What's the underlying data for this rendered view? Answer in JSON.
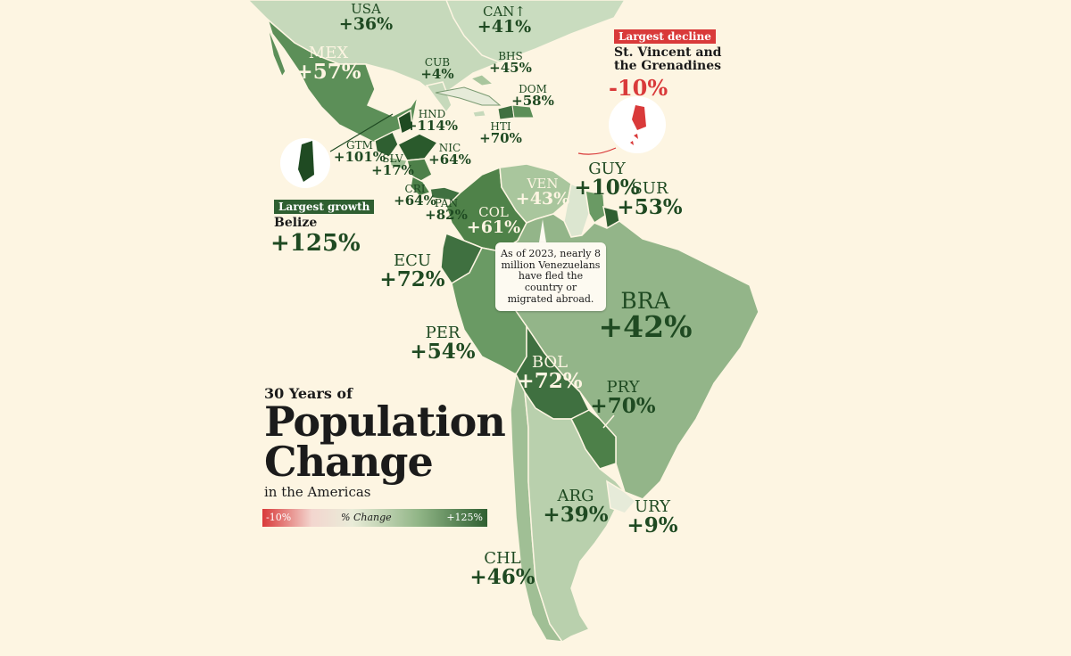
{
  "title": {
    "pre": "30 Years of",
    "line1": "Population",
    "line2": "Change",
    "post": "in the Americas"
  },
  "legend": {
    "min_label": "-10%",
    "mid_label": "% Change",
    "max_label": "+125%",
    "color_low": "#d93a3a",
    "color_high": "#2f5f31"
  },
  "callouts": {
    "growth": {
      "tag": "Largest growth",
      "country": "Belize",
      "value": "+125%",
      "color": "#2f5f31"
    },
    "decline": {
      "tag": "Largest decline",
      "country_line1": "St. Vincent and",
      "country_line2": "the Grenadines",
      "value": "-10%",
      "color": "#d93a3a"
    }
  },
  "note": "As of 2023, nearly 8 million Venezuelans have fled the country or migrated abroad.",
  "countries": [
    {
      "code": "USA",
      "value": "+36%"
    },
    {
      "code": "CAN↑",
      "value": "+41%"
    },
    {
      "code": "MEX",
      "value": "+57%"
    },
    {
      "code": "CUB",
      "value": "+4%"
    },
    {
      "code": "BHS",
      "value": "+45%"
    },
    {
      "code": "DOM",
      "value": "+58%"
    },
    {
      "code": "HND",
      "value": "+114%"
    },
    {
      "code": "HTI",
      "value": "+70%"
    },
    {
      "code": "GTM",
      "value": "+101%"
    },
    {
      "code": "NIC",
      "value": "+64%"
    },
    {
      "code": "SLV",
      "value": "+17%"
    },
    {
      "code": "CRI",
      "value": "+64%"
    },
    {
      "code": "PAN",
      "value": "+82%"
    },
    {
      "code": "GUY",
      "value": "+10%"
    },
    {
      "code": "VEN",
      "value": "+43%"
    },
    {
      "code": "SUR",
      "value": "+53%"
    },
    {
      "code": "COL",
      "value": "+61%"
    },
    {
      "code": "ECU",
      "value": "+72%"
    },
    {
      "code": "BRA",
      "value": "+42%"
    },
    {
      "code": "PER",
      "value": "+54%"
    },
    {
      "code": "BOL",
      "value": "+72%"
    },
    {
      "code": "PRY",
      "value": "+70%"
    },
    {
      "code": "ARG",
      "value": "+39%"
    },
    {
      "code": "URY",
      "value": "+9%"
    },
    {
      "code": "CHL",
      "value": "+46%"
    }
  ]
}
